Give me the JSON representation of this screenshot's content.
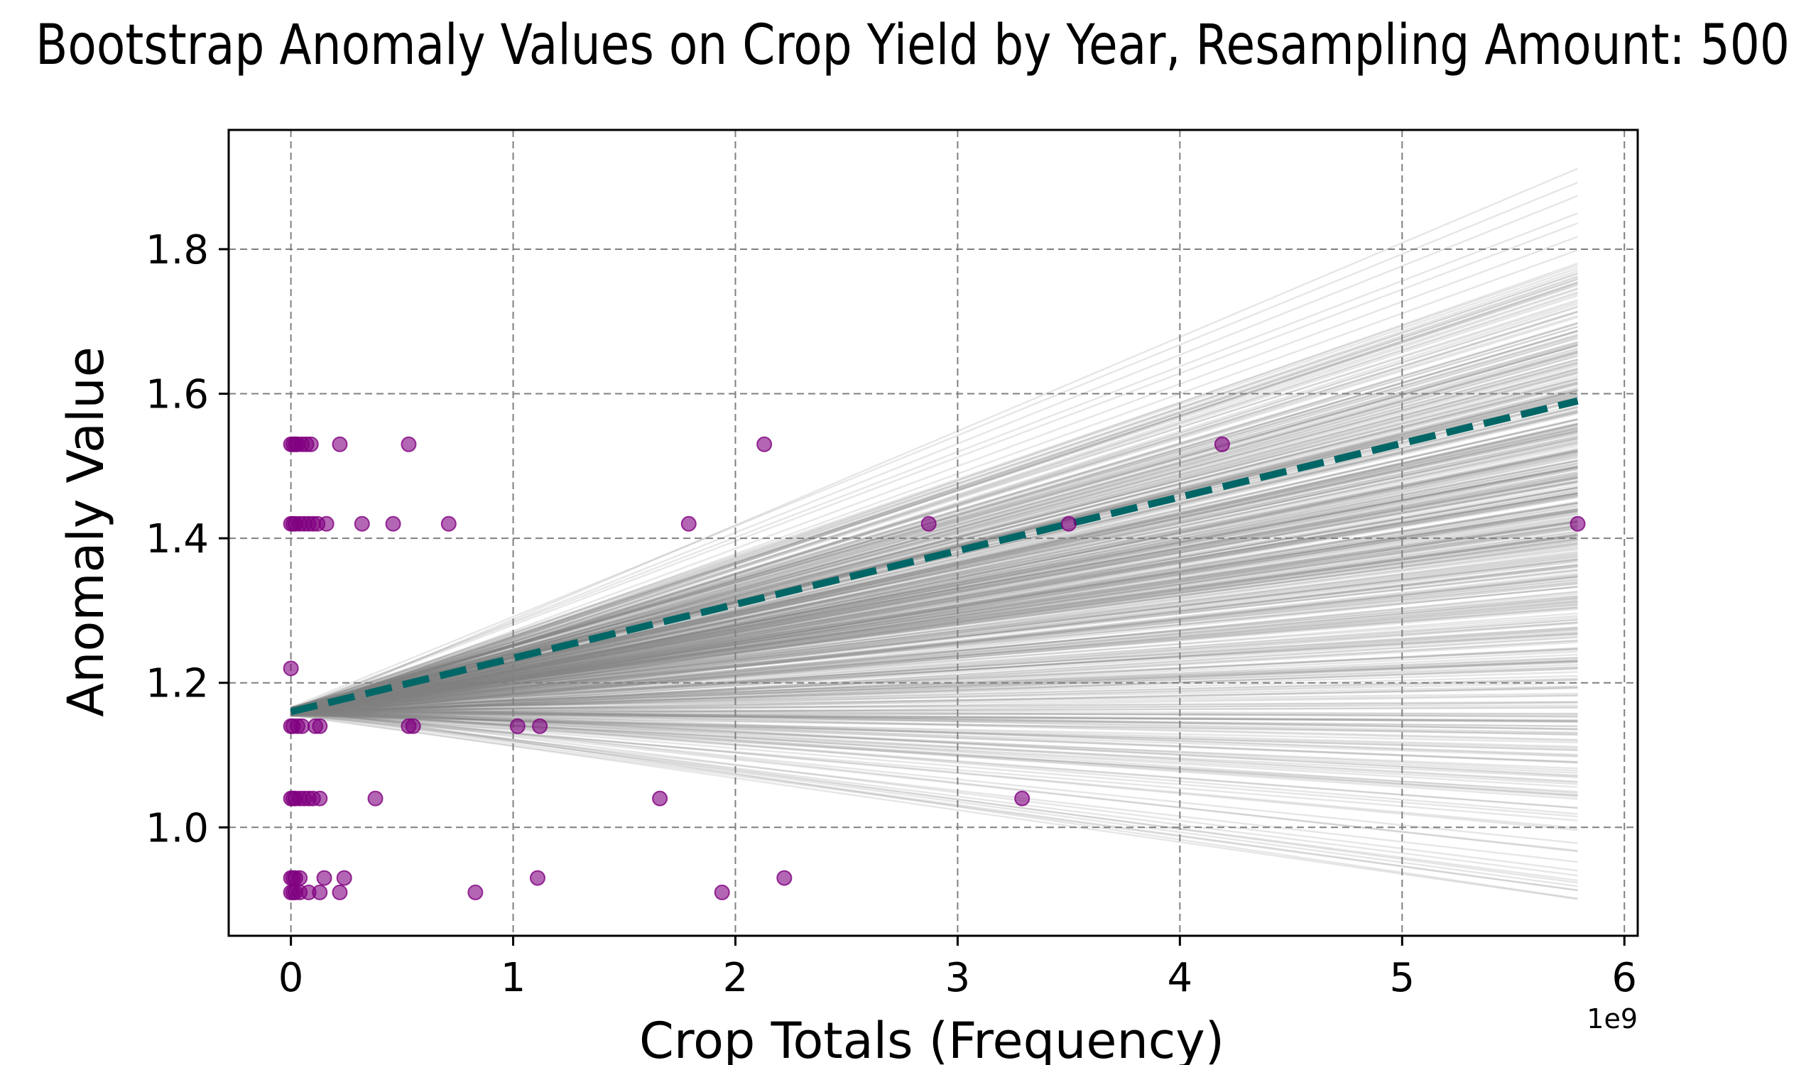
{
  "chart_data": {
    "type": "scatter",
    "title": "Bootstrap Anomaly Values on Crop Yield by Year, Resampling Amount: 500",
    "xlabel": "Crop Totals (Frequency)",
    "ylabel": "Anomaly Value",
    "x_offset_label": "1e9",
    "xlim": [
      -0.28,
      6.06
    ],
    "ylim": [
      0.85,
      1.965
    ],
    "x_ticks": [
      0,
      1,
      2,
      3,
      4,
      5,
      6
    ],
    "x_tick_labels": [
      "0",
      "1",
      "2",
      "3",
      "4",
      "5",
      "6"
    ],
    "y_ticks": [
      1.0,
      1.2,
      1.4,
      1.6,
      1.8
    ],
    "y_tick_labels": [
      "1.0",
      "1.2",
      "1.4",
      "1.6",
      "1.8"
    ],
    "grid": true,
    "colors": {
      "points": "#800080",
      "fit_line": "#006666",
      "bootstrap_lines": "#808080",
      "grid": "#808080"
    },
    "series": [
      {
        "kind": "points",
        "points": [
          [
            0.0,
            1.53
          ],
          [
            0.01,
            1.53
          ],
          [
            0.02,
            1.53
          ],
          [
            0.03,
            1.53
          ],
          [
            0.05,
            1.53
          ],
          [
            0.07,
            1.53
          ],
          [
            0.09,
            1.53
          ],
          [
            0.22,
            1.53
          ],
          [
            0.53,
            1.53
          ],
          [
            2.13,
            1.53
          ],
          [
            4.19,
            1.53
          ],
          [
            0.0,
            1.42
          ],
          [
            0.01,
            1.42
          ],
          [
            0.02,
            1.42
          ],
          [
            0.04,
            1.42
          ],
          [
            0.06,
            1.42
          ],
          [
            0.08,
            1.42
          ],
          [
            0.1,
            1.42
          ],
          [
            0.12,
            1.42
          ],
          [
            0.16,
            1.42
          ],
          [
            0.32,
            1.42
          ],
          [
            0.46,
            1.42
          ],
          [
            0.71,
            1.42
          ],
          [
            1.79,
            1.42
          ],
          [
            2.87,
            1.42
          ],
          [
            3.5,
            1.42
          ],
          [
            5.79,
            1.42
          ],
          [
            0.0,
            1.22
          ],
          [
            0.0,
            1.14
          ],
          [
            0.01,
            1.14
          ],
          [
            0.03,
            1.14
          ],
          [
            0.05,
            1.14
          ],
          [
            0.11,
            1.14
          ],
          [
            0.13,
            1.14
          ],
          [
            0.53,
            1.14
          ],
          [
            0.55,
            1.14
          ],
          [
            1.02,
            1.14
          ],
          [
            1.12,
            1.14
          ],
          [
            0.0,
            1.04
          ],
          [
            0.01,
            1.04
          ],
          [
            0.02,
            1.04
          ],
          [
            0.04,
            1.04
          ],
          [
            0.06,
            1.04
          ],
          [
            0.08,
            1.04
          ],
          [
            0.1,
            1.04
          ],
          [
            0.13,
            1.04
          ],
          [
            0.38,
            1.04
          ],
          [
            1.66,
            1.04
          ],
          [
            3.29,
            1.04
          ],
          [
            0.0,
            0.93
          ],
          [
            0.01,
            0.93
          ],
          [
            0.02,
            0.93
          ],
          [
            0.04,
            0.93
          ],
          [
            0.15,
            0.93
          ],
          [
            0.24,
            0.93
          ],
          [
            1.11,
            0.93
          ],
          [
            2.22,
            0.93
          ],
          [
            0.0,
            0.91
          ],
          [
            0.01,
            0.91
          ],
          [
            0.02,
            0.91
          ],
          [
            0.04,
            0.91
          ],
          [
            0.08,
            0.91
          ],
          [
            0.13,
            0.91
          ],
          [
            0.22,
            0.91
          ],
          [
            0.83,
            0.91
          ],
          [
            1.94,
            0.91
          ]
        ]
      },
      {
        "kind": "fit_line",
        "x": [
          0.0,
          5.79
        ],
        "y": [
          1.16,
          1.59
        ]
      },
      {
        "kind": "bootstrap_lines",
        "count": 500,
        "x": [
          0.0,
          5.79
        ],
        "y_start": 1.16,
        "y_end_samples": [
          1.91,
          1.78,
          1.76,
          1.75,
          1.73,
          1.71,
          1.69,
          1.68,
          1.67,
          1.66,
          1.65,
          1.64,
          1.63,
          1.62,
          1.61,
          1.6,
          1.6,
          1.59,
          1.58,
          1.57,
          1.56,
          1.55,
          1.55,
          1.54,
          1.53,
          1.52,
          1.52,
          1.51,
          1.5,
          1.5,
          1.49,
          1.48,
          1.48,
          1.47,
          1.46,
          1.46,
          1.45,
          1.44,
          1.44,
          1.43,
          1.42,
          1.42,
          1.41,
          1.4,
          1.4,
          1.39,
          1.38,
          1.37,
          1.36,
          1.35,
          1.34,
          1.33,
          1.32,
          1.31,
          1.3,
          1.28,
          1.27,
          1.26,
          1.24,
          1.23,
          1.22,
          1.2,
          1.18,
          1.16,
          1.15,
          1.14,
          1.12,
          1.1,
          1.08,
          1.06,
          1.04,
          1.0,
          0.93,
          0.9
        ]
      }
    ]
  }
}
